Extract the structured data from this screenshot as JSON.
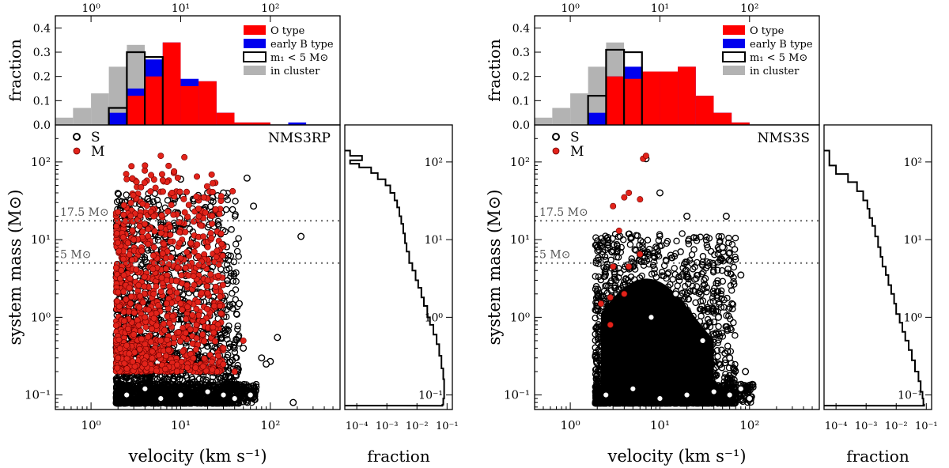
{
  "chart_data": [
    {
      "panel": "left",
      "type": "scatter",
      "title": "NMS3RP",
      "xlabel": "velocity (km s⁻¹)",
      "ylabel": "system mass (M⊙)",
      "xscale": "log",
      "yscale": "log",
      "xlim": [
        0.4,
        600
      ],
      "ylim": [
        0.065,
        300
      ],
      "x_ticks": [
        "10⁰",
        "10¹",
        "10²"
      ],
      "y_ticks": [
        "10⁻¹",
        "10⁰",
        "10¹",
        "10²"
      ],
      "hlines": [
        {
          "y": 17.5,
          "label": "17.5 M⊙"
        },
        {
          "y": 5,
          "label": "5 M⊙"
        }
      ],
      "legend": [
        "S",
        "M"
      ],
      "series": [
        {
          "name": "S",
          "marker": "open-circle",
          "points": [
            [
              2.5,
              0.1
            ],
            [
              4,
              0.12
            ],
            [
              6,
              0.09
            ],
            [
              10,
              0.1
            ],
            [
              20,
              0.11
            ],
            [
              30,
              0.1
            ],
            [
              40,
              0.09
            ],
            [
              60,
              0.1
            ],
            [
              3,
              0.5
            ],
            [
              8,
              1.0
            ],
            [
              15,
              2.0
            ],
            [
              25,
              0.8
            ],
            [
              50,
              0.4
            ],
            [
              80,
              0.3
            ],
            [
              120,
              0.55
            ],
            [
              100,
              0.27
            ],
            [
              180,
              0.08
            ],
            [
              220,
              11
            ],
            [
              55,
              62
            ],
            [
              65,
              27
            ],
            [
              30,
              40
            ],
            [
              10,
              60
            ],
            [
              20,
              40
            ],
            [
              45,
              1.5
            ],
            [
              90,
              0.25
            ]
          ]
        },
        {
          "name": "M",
          "marker": "filled-circle",
          "color": "#e2231a",
          "points": [
            [
              2,
              0.3
            ],
            [
              3,
              0.6
            ],
            [
              4,
              1.0
            ],
            [
              5,
              2.0
            ],
            [
              6,
              0.5
            ],
            [
              7,
              3
            ],
            [
              10,
              1.5
            ],
            [
              15,
              0.8
            ],
            [
              20,
              3
            ],
            [
              25,
              6
            ],
            [
              30,
              0.4
            ],
            [
              3,
              10
            ],
            [
              5,
              20
            ],
            [
              8,
              40
            ],
            [
              6,
              120
            ],
            [
              11,
              115
            ],
            [
              2.5,
              60
            ],
            [
              4,
              90
            ],
            [
              38,
              42
            ],
            [
              40,
              0.2
            ],
            [
              50,
              0.5
            ]
          ]
        }
      ]
    },
    {
      "panel": "left",
      "type": "bar",
      "xlabel": "velocity (km s⁻¹)",
      "ylabel": "fraction",
      "xscale": "log",
      "xlim": [
        0.4,
        600
      ],
      "ylim": [
        0,
        0.45
      ],
      "x_ticks": [
        "10⁰",
        "10¹",
        "10²"
      ],
      "y_ticks": [
        "0.0",
        "0.1",
        "0.2",
        "0.3",
        "0.4"
      ],
      "legend": [
        "O type",
        "early B type",
        "m₁ < 5 M⊙",
        "in cluster"
      ],
      "bin_edges": [
        0.4,
        0.63,
        1.0,
        1.58,
        2.51,
        3.98,
        6.31,
        10.0,
        15.85,
        25.12,
        39.81,
        63.1,
        100.0,
        158.5,
        251.2,
        398.1
      ],
      "series": [
        {
          "name": "in cluster",
          "color": "#b3b3b3",
          "values": [
            0.03,
            0.07,
            0.13,
            0.24,
            0.33,
            0.23,
            0,
            0,
            0,
            0,
            0,
            0,
            0,
            0,
            0
          ]
        },
        {
          "name": "early B type",
          "color": "#0000ee",
          "values": [
            0,
            0,
            0,
            0.05,
            0.15,
            0.27,
            0.34,
            0.19,
            0.18,
            0.05,
            0.01,
            0.01,
            0,
            0.01,
            0
          ]
        },
        {
          "name": "O type",
          "color": "#ff0000",
          "values": [
            0,
            0,
            0,
            0,
            0.12,
            0.2,
            0.34,
            0.16,
            0.18,
            0.05,
            0.01,
            0.01,
            0,
            0,
            0
          ]
        },
        {
          "name": "m₁ < 5 M⊙",
          "color": "#000000",
          "style": "step",
          "values": [
            0,
            0,
            0,
            0.07,
            0.3,
            0.28,
            0,
            0,
            0,
            0,
            0,
            0,
            0,
            0,
            0
          ]
        }
      ]
    },
    {
      "panel": "left",
      "type": "line",
      "style": "step",
      "xlabel": "fraction",
      "xscale": "log",
      "yscale": "log",
      "xlim": [
        4e-05,
        0.15
      ],
      "ylim": [
        0.065,
        300
      ],
      "x_ticks": [
        "10⁻⁴",
        "10⁻³",
        "10⁻²",
        "10⁻¹"
      ],
      "y_ticks": [
        "10⁻¹",
        "10⁰",
        "10¹",
        "10²"
      ],
      "mass": [
        140,
        120,
        105,
        95,
        85,
        72,
        60,
        50,
        40,
        32,
        26,
        20,
        16,
        12,
        9,
        7,
        5,
        4,
        3,
        2.4,
        1.8,
        1.4,
        1.0,
        0.8,
        0.6,
        0.45,
        0.32,
        0.22,
        0.16,
        0.12,
        0.09,
        0.075
      ],
      "fraction": [
        6e-05,
        0.00015,
        6e-05,
        0.00012,
        0.0003,
        0.0005,
        0.0009,
        0.0013,
        0.0018,
        0.0022,
        0.0026,
        0.003,
        0.0035,
        0.004,
        0.0045,
        0.0055,
        0.007,
        0.009,
        0.011,
        0.014,
        0.017,
        0.022,
        0.027,
        0.035,
        0.045,
        0.055,
        0.065,
        0.075,
        0.08,
        0.08,
        0.075,
        0.07
      ]
    },
    {
      "panel": "right",
      "type": "scatter",
      "title": "NMS3S",
      "xlabel": "velocity (km s⁻¹)",
      "ylabel": "system mass (M⊙)",
      "xscale": "log",
      "yscale": "log",
      "xlim": [
        0.4,
        600
      ],
      "ylim": [
        0.065,
        300
      ],
      "x_ticks": [
        "10⁰",
        "10¹",
        "10²"
      ],
      "y_ticks": [
        "10⁻¹",
        "10⁰",
        "10¹",
        "10²"
      ],
      "hlines": [
        {
          "y": 17.5,
          "label": "17.5 M⊙"
        },
        {
          "y": 5,
          "label": "5 M⊙"
        }
      ],
      "legend": [
        "S",
        "M"
      ],
      "series": [
        {
          "name": "S",
          "marker": "open-circle",
          "points": [
            [
              2.5,
              0.1
            ],
            [
              5,
              0.12
            ],
            [
              10,
              0.09
            ],
            [
              20,
              0.1
            ],
            [
              40,
              0.11
            ],
            [
              60,
              0.1
            ],
            [
              80,
              0.12
            ],
            [
              100,
              0.09
            ],
            [
              8,
              1.0
            ],
            [
              15,
              2.0
            ],
            [
              30,
              0.5
            ],
            [
              60,
              0.3
            ],
            [
              90,
              0.2
            ],
            [
              7,
              110
            ],
            [
              10,
              40
            ],
            [
              20,
              20
            ],
            [
              55,
              20
            ],
            [
              50,
              8
            ],
            [
              80,
              3.5
            ],
            [
              45,
              1.0
            ]
          ]
        },
        {
          "name": "M",
          "marker": "filled-circle",
          "color": "#e2231a",
          "points": [
            [
              2.8,
              0.8
            ],
            [
              2.2,
              1.5
            ],
            [
              2.8,
              1.8
            ],
            [
              4,
              2
            ],
            [
              3,
              4.5
            ],
            [
              4.5,
              4.5
            ],
            [
              3.5,
              13
            ],
            [
              6,
              6.5
            ],
            [
              3,
              27
            ],
            [
              4.5,
              40
            ],
            [
              6.5,
              110
            ],
            [
              7,
              120
            ],
            [
              6,
              33
            ],
            [
              4,
              35
            ]
          ]
        }
      ]
    },
    {
      "panel": "right",
      "type": "bar",
      "xlabel": "velocity (km s⁻¹)",
      "ylabel": "fraction",
      "xscale": "log",
      "xlim": [
        0.4,
        600
      ],
      "ylim": [
        0,
        0.45
      ],
      "x_ticks": [
        "10⁰",
        "10¹",
        "10²"
      ],
      "y_ticks": [
        "0.0",
        "0.1",
        "0.2",
        "0.3",
        "0.4"
      ],
      "legend": [
        "O type",
        "early B type",
        "m₁ < 5 M⊙",
        "in cluster"
      ],
      "bin_edges": [
        0.4,
        0.63,
        1.0,
        1.58,
        2.51,
        3.98,
        6.31,
        10.0,
        15.85,
        25.12,
        39.81,
        63.1,
        100.0,
        158.5,
        251.2,
        398.1
      ],
      "series": [
        {
          "name": "in cluster",
          "color": "#b3b3b3",
          "values": [
            0.03,
            0.07,
            0.13,
            0.24,
            0.34,
            0.14,
            0,
            0,
            0,
            0,
            0,
            0,
            0,
            0,
            0
          ]
        },
        {
          "name": "early B type",
          "color": "#0000ee",
          "values": [
            0,
            0,
            0,
            0.05,
            0.2,
            0.24,
            0.22,
            0.22,
            0.24,
            0.12,
            0.05,
            0.01,
            0,
            0,
            0
          ]
        },
        {
          "name": "O type",
          "color": "#ff0000",
          "values": [
            0,
            0,
            0,
            0,
            0.2,
            0.19,
            0.22,
            0.22,
            0.24,
            0.12,
            0.05,
            0.01,
            0,
            0,
            0
          ]
        },
        {
          "name": "m₁ < 5 M⊙",
          "color": "#000000",
          "style": "step",
          "values": [
            0,
            0,
            0,
            0.12,
            0.31,
            0.3,
            0,
            0,
            0,
            0,
            0,
            0,
            0,
            0,
            0
          ]
        }
      ]
    },
    {
      "panel": "right",
      "type": "line",
      "style": "step",
      "xlabel": "fraction",
      "xscale": "log",
      "yscale": "log",
      "xlim": [
        4e-05,
        0.15
      ],
      "ylim": [
        0.065,
        300
      ],
      "x_ticks": [
        "10⁻⁴",
        "10⁻³",
        "10⁻²",
        "10⁻¹"
      ],
      "y_ticks": [
        "10⁻¹",
        "10⁰",
        "10¹",
        "10²"
      ],
      "mass": [
        140,
        110,
        90,
        70,
        55,
        42,
        32,
        25,
        19,
        15,
        11,
        8,
        6,
        4.5,
        3.5,
        2.6,
        2,
        1.5,
        1.1,
        0.85,
        0.65,
        0.5,
        0.38,
        0.28,
        0.2,
        0.15,
        0.11,
        0.09,
        0.075
      ],
      "fraction": [
        6e-05,
        6e-05,
        0.0001,
        0.00025,
        0.0005,
        0.0008,
        0.0011,
        0.0013,
        0.0016,
        0.002,
        0.0025,
        0.003,
        0.0035,
        0.0045,
        0.0055,
        0.0068,
        0.0085,
        0.01,
        0.013,
        0.016,
        0.02,
        0.026,
        0.033,
        0.042,
        0.055,
        0.065,
        0.075,
        0.08,
        0.085
      ]
    }
  ]
}
